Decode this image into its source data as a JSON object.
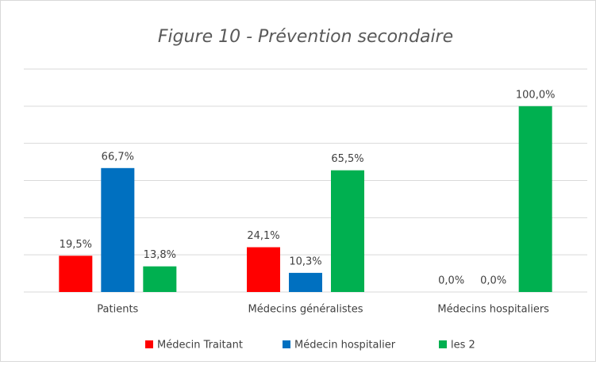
{
  "chart_data": {
    "type": "bar",
    "title": "Figure 10 - Prévention secondaire",
    "categories": [
      "Patients",
      "Médecins généralistes",
      "Médecins hospitaliers"
    ],
    "series": [
      {
        "name": "Médecin Traitant",
        "color": "#ff0000",
        "values": [
          19.5,
          24.1,
          0
        ],
        "value_labels": [
          "19,5%",
          "24,1%",
          "0,0%"
        ]
      },
      {
        "name": "Médecin hospitalier",
        "color": "#0070c0",
        "values": [
          66.7,
          10.3,
          0
        ],
        "value_labels": [
          "66,7%",
          "10,3%",
          "0,0%"
        ]
      },
      {
        "name": "les 2",
        "color": "#00b050",
        "values": [
          13.8,
          65.5,
          100
        ],
        "value_labels": [
          "13,8%",
          "65,5%",
          "100,0%"
        ]
      }
    ],
    "ylim": [
      0,
      120
    ],
    "yticks": [
      0,
      20,
      40,
      60,
      80,
      100,
      120
    ],
    "grid": true,
    "legend": "bottom"
  }
}
